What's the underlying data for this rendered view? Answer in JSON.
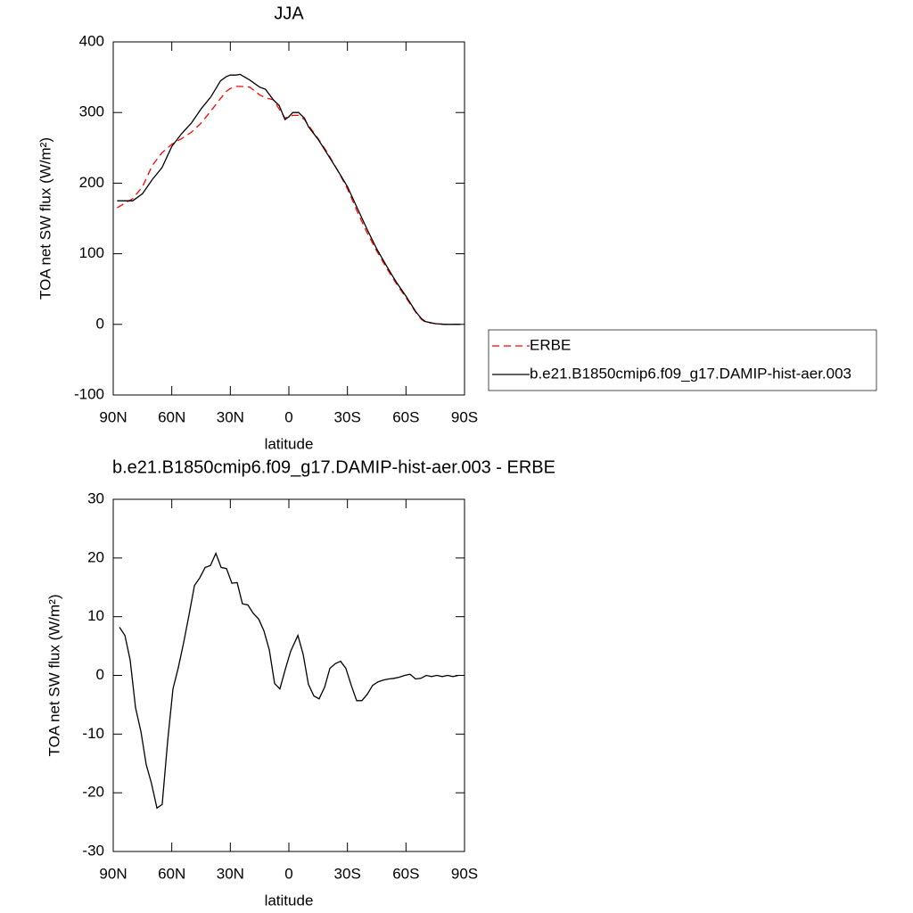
{
  "chart_data": [
    {
      "type": "line",
      "title": "JJA",
      "xlabel": "latitude",
      "ylabel": "TOA net SW flux (W/m²)",
      "x": [
        88,
        85,
        80,
        75,
        70,
        65,
        60,
        55,
        50,
        45,
        40,
        35,
        32,
        30,
        27,
        25,
        20,
        15,
        12,
        8,
        5,
        2,
        0,
        -2,
        -5,
        -8,
        -10,
        -15,
        -20,
        -25,
        -30,
        -35,
        -40,
        -45,
        -50,
        -55,
        -60,
        -65,
        -68,
        -70,
        -75,
        -80,
        -85,
        -88
      ],
      "series": [
        {
          "name": "ERBE",
          "color": "#ff0000",
          "line_style": "dashed",
          "values": [
            165,
            170,
            178,
            195,
            225,
            243,
            255,
            263,
            272,
            285,
            302,
            320,
            330,
            334,
            337,
            337,
            336,
            325,
            321,
            318,
            305,
            292,
            294,
            296,
            296,
            290,
            282,
            263,
            242,
            218,
            192,
            160,
            130,
            104,
            80,
            58,
            38,
            17,
            7,
            3,
            1,
            0,
            0,
            0
          ]
        },
        {
          "name": "b.e21.B1850cmip6.f09_g17.DAMIP-hist-aer.003",
          "color": "#000000",
          "line_style": "solid",
          "values": [
            175,
            175,
            175,
            185,
            205,
            222,
            252,
            270,
            285,
            305,
            322,
            345,
            351,
            353,
            353,
            354,
            346,
            336,
            333,
            318,
            310,
            290,
            294,
            300,
            300,
            292,
            280,
            262,
            240,
            218,
            195,
            165,
            135,
            107,
            83,
            60,
            40,
            18,
            8,
            4,
            1,
            0,
            0,
            0
          ]
        }
      ],
      "xlim": [
        90,
        -90
      ],
      "xticks": [
        {
          "value": 90,
          "label": "90N"
        },
        {
          "value": 60,
          "label": "60N"
        },
        {
          "value": 30,
          "label": "30N"
        },
        0,
        {
          "value": -30,
          "label": "30S"
        },
        {
          "value": -60,
          "label": "60S"
        },
        {
          "value": -90,
          "label": "90S"
        }
      ],
      "ylim": [
        -100,
        400
      ],
      "yticks": [
        -100,
        0,
        100,
        200,
        300,
        400
      ],
      "legend": "outside-right"
    },
    {
      "type": "line",
      "title": "b.e21.B1850cmip6.f09_g17.DAMIP-hist-aer.003 - ERBE",
      "xlabel": "latitude",
      "ylabel": "TOA net SW flux (W/m²)",
      "x": [
        86.8,
        84.0,
        81.3,
        78.6,
        75.8,
        73.1,
        70.4,
        67.6,
        64.9,
        62.1,
        59.4,
        56.6,
        53.9,
        51.2,
        48.4,
        45.7,
        42.9,
        40.2,
        37.4,
        34.7,
        32.0,
        29.2,
        26.5,
        23.8,
        21.0,
        18.3,
        15.5,
        12.8,
        10.0,
        7.3,
        4.6,
        1.8,
        -0.9,
        -4.6,
        -7.3,
        -10.0,
        -12.8,
        -15.5,
        -18.3,
        -21.0,
        -23.8,
        -26.5,
        -29.2,
        -32.0,
        -34.7,
        -37.4,
        -40.2,
        -42.9,
        -45.7,
        -48.4,
        -51.2,
        -53.9,
        -56.6,
        -59.4,
        -62.1,
        -64.9,
        -67.6,
        -70.4,
        -73.1,
        -75.8,
        -78.6,
        -81.3,
        -84.0,
        -86.8
      ],
      "values": [
        8.2,
        6.8,
        2.6,
        -5.5,
        -9.6,
        -15.2,
        -18.4,
        -22.6,
        -22.0,
        -11.1,
        -2.3,
        1.4,
        5.6,
        10.2,
        15.3,
        16.6,
        18.4,
        18.7,
        20.8,
        18.4,
        18.2,
        15.7,
        15.8,
        12.2,
        12.0,
        10.6,
        9.6,
        7.6,
        4.3,
        -1.4,
        -2.3,
        1.1,
        4.1,
        6.8,
        3.6,
        -1.5,
        -3.5,
        -4.0,
        -2.0,
        1.2,
        2.0,
        2.4,
        1.2,
        -1.7,
        -4.3,
        -4.3,
        -3.2,
        -1.7,
        -1.1,
        -0.8,
        -0.6,
        -0.5,
        -0.3,
        0,
        0.2,
        -0.6,
        -0.5,
        0,
        -0.2,
        0,
        -0.2,
        0,
        -0.2,
        0
      ],
      "color": "#000000",
      "xlim": [
        90,
        -90
      ],
      "xticks": [
        {
          "value": 90,
          "label": "90N"
        },
        {
          "value": 60,
          "label": "60N"
        },
        {
          "value": 30,
          "label": "30N"
        },
        0,
        {
          "value": -30,
          "label": "30S"
        },
        {
          "value": -60,
          "label": "60S"
        },
        {
          "value": -90,
          "label": "90S"
        }
      ],
      "ylim": [
        -30,
        30
      ],
      "yticks": [
        -30,
        -20,
        -10,
        0,
        10,
        20,
        30
      ]
    }
  ]
}
